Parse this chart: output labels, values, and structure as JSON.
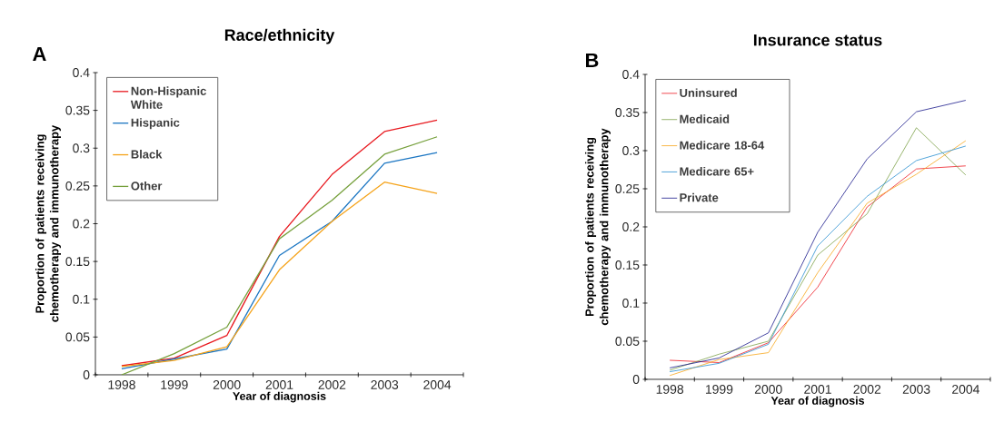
{
  "chart_data": [
    {
      "type": "line",
      "title": "Race/ethnicity",
      "xlabel": "Year of diagnosis",
      "ylabel": "Proportion of patients  receiving chemotherapy and immunotherapy",
      "annotations": [
        "A"
      ],
      "categories": [
        "1998",
        "1999",
        "2000",
        "2001",
        "2002",
        "2003",
        "2004"
      ],
      "series": [
        {
          "name": "Non-Hispanic White",
          "color": "#e8191f",
          "values": [
            0.012,
            0.022,
            0.052,
            0.183,
            0.265,
            0.322,
            0.337
          ]
        },
        {
          "name": "Hispanic",
          "color": "#1a75c2",
          "values": [
            0.008,
            0.021,
            0.034,
            0.158,
            0.203,
            0.28,
            0.294
          ]
        },
        {
          "name": "Black",
          "color": "#f5a31a",
          "values": [
            0.011,
            0.019,
            0.037,
            0.139,
            0.203,
            0.255,
            0.24
          ]
        },
        {
          "name": "Other",
          "color": "#76a03c",
          "values": [
            0.0,
            0.028,
            0.063,
            0.18,
            0.231,
            0.292,
            0.315
          ]
        }
      ],
      "ylim": [
        0,
        0.4
      ],
      "yticks": [
        0,
        0.05,
        0.1,
        0.15,
        0.2,
        0.25,
        0.3,
        0.35,
        0.4
      ],
      "legend": "top left",
      "grid": false
    },
    {
      "type": "line",
      "title": "Insurance status",
      "xlabel": "Year of diagnosis",
      "ylabel": "Proportion of patients  receiving chemotherapy and immunotherapy",
      "annotations": [
        "B"
      ],
      "categories": [
        "1998",
        "1999",
        "2000",
        "2001",
        "2002",
        "2003",
        "2004"
      ],
      "series": [
        {
          "name": "Uninsured",
          "color": "#ee1c25",
          "values": [
            0.025,
            0.022,
            0.048,
            0.121,
            0.226,
            0.276,
            0.28
          ]
        },
        {
          "name": "Medicaid",
          "color": "#7da24a",
          "values": [
            0.012,
            0.033,
            0.05,
            0.163,
            0.217,
            0.33,
            0.268
          ]
        },
        {
          "name": "Medicare 18-64",
          "color": "#f8a71d",
          "values": [
            0.005,
            0.026,
            0.035,
            0.14,
            0.231,
            0.269,
            0.313
          ]
        },
        {
          "name": "Medicare 65+",
          "color": "#2a8fd0",
          "values": [
            0.01,
            0.021,
            0.046,
            0.175,
            0.24,
            0.287,
            0.306
          ]
        },
        {
          "name": "Private",
          "color": "#1a1a8c",
          "values": [
            0.015,
            0.028,
            0.061,
            0.193,
            0.289,
            0.351,
            0.366
          ]
        }
      ],
      "ylim": [
        0,
        0.4
      ],
      "yticks": [
        0,
        0.05,
        0.1,
        0.15,
        0.2,
        0.25,
        0.3,
        0.35,
        0.4
      ],
      "legend": "top left",
      "grid": false
    }
  ]
}
